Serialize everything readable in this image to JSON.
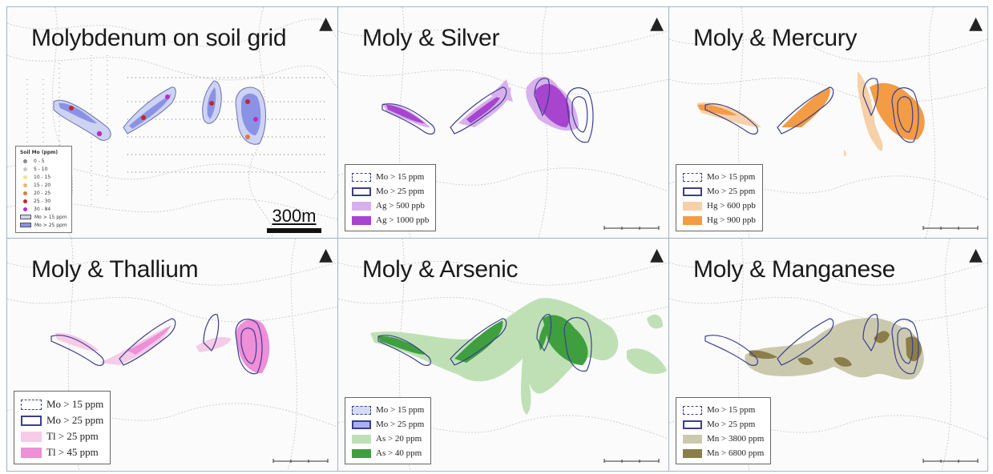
{
  "panels": [
    {
      "title": "Molybdenum on soil grid",
      "soil_legend": {
        "title": "Soil Mo (ppm)",
        "classes": [
          {
            "label": "0 - 5",
            "color": "#8a8a8a"
          },
          {
            "label": "5 - 10",
            "color": "#c9c9c9"
          },
          {
            "label": "10 - 15",
            "color": "#f1e28a"
          },
          {
            "label": "15 - 20",
            "color": "#f5b26a"
          },
          {
            "label": "20 - 25",
            "color": "#e07b3a"
          },
          {
            "label": "25 - 30",
            "color": "#c0282a"
          },
          {
            "label": "30 - 84",
            "color": "#c02ac0"
          }
        ],
        "zones": [
          {
            "label": "Mo > 15 ppm",
            "color": "#cdd3f2"
          },
          {
            "label": "Mo > 25 ppm",
            "color": "#8a92e6"
          }
        ]
      },
      "scale_label": "300m"
    },
    {
      "title": "Moly & Silver",
      "legend": [
        {
          "label": "Mo > 15 ppm",
          "style": "dashed"
        },
        {
          "label": "Mo > 25 ppm",
          "style": "solid"
        },
        {
          "label": "Ag > 500 ppb",
          "color": "#d8b0ec"
        },
        {
          "label": "Ag > 1000 ppb",
          "color": "#a745cf"
        }
      ]
    },
    {
      "title": "Moly & Mercury",
      "legend": [
        {
          "label": "Mo > 15 ppm",
          "style": "dashed"
        },
        {
          "label": "Mo > 25 ppm",
          "style": "solid"
        },
        {
          "label": "Hg > 600 ppb",
          "color": "#f6d0a8"
        },
        {
          "label": "Hg > 900 ppb",
          "color": "#f39b45"
        }
      ]
    },
    {
      "title": "Moly & Thallium",
      "legend": [
        {
          "label": "Mo > 15 ppm",
          "style": "dashed"
        },
        {
          "label": "Mo > 25 ppm",
          "style": "solid"
        },
        {
          "label": "Tl > 25 ppm",
          "color": "#f5cbe8"
        },
        {
          "label": "Tl > 45 ppm",
          "color": "#ee8fd8"
        }
      ]
    },
    {
      "title": "Moly & Arsenic",
      "legend": [
        {
          "label": "Mo > 15 ppm",
          "style": "dashed-fill"
        },
        {
          "label": "Mo > 25 ppm",
          "style": "solid-fill"
        },
        {
          "label": "As > 20 ppm",
          "color": "#bfe0b5"
        },
        {
          "label": "As > 40 ppm",
          "color": "#3f9f3f"
        }
      ]
    },
    {
      "title": "Moly & Manganese",
      "legend": [
        {
          "label": "Mo > 15 ppm",
          "style": "dashed"
        },
        {
          "label": "Mo > 25 ppm",
          "style": "solid"
        },
        {
          "label": "Mn > 3800 ppm",
          "color": "#cbc9ad"
        },
        {
          "label": "Mn > 6800 ppm",
          "color": "#8c7e48"
        }
      ]
    }
  ],
  "north_arrow": "▲",
  "colors": {
    "mo_outline": "#3a3f8f",
    "mo15_fill": "#cdd3f2",
    "mo25_fill": "#8a92e6",
    "contour": "#b9b9b9",
    "panel_border": "#9fb3cf"
  }
}
